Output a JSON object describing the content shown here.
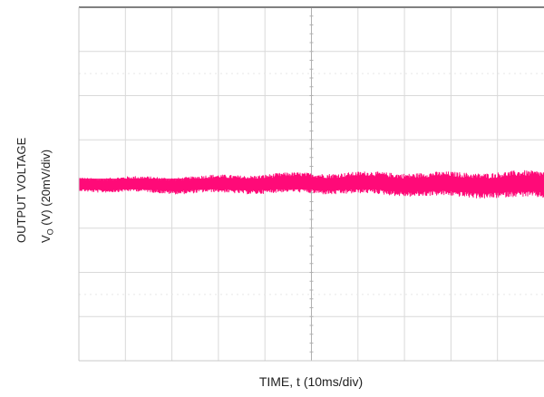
{
  "chart_data": {
    "type": "line",
    "title": "",
    "xlabel": "TIME, t (10ms/div)",
    "ylabel_line1": "OUTPUT VOLTAGE",
    "ylabel_line2": "VO (V) (20mV/div)",
    "x_divisions": 10,
    "y_divisions": 8,
    "xlim": [
      0,
      100
    ],
    "ylim": [
      -80,
      80
    ],
    "x_unit": "ms",
    "y_unit": "mV",
    "grid": true,
    "series": [
      {
        "trace": "output-voltage-ripple",
        "color": "#ff0a78",
        "offset_mV": 0,
        "peak_to_peak_mV_start": 6,
        "peak_to_peak_mV_end": 12,
        "x": [
          0,
          100
        ]
      }
    ]
  },
  "colors": {
    "trace": "#ff0a78",
    "grid": "#d9d9d9",
    "frame": "#808080",
    "center_axis": "#b0b0b0"
  }
}
